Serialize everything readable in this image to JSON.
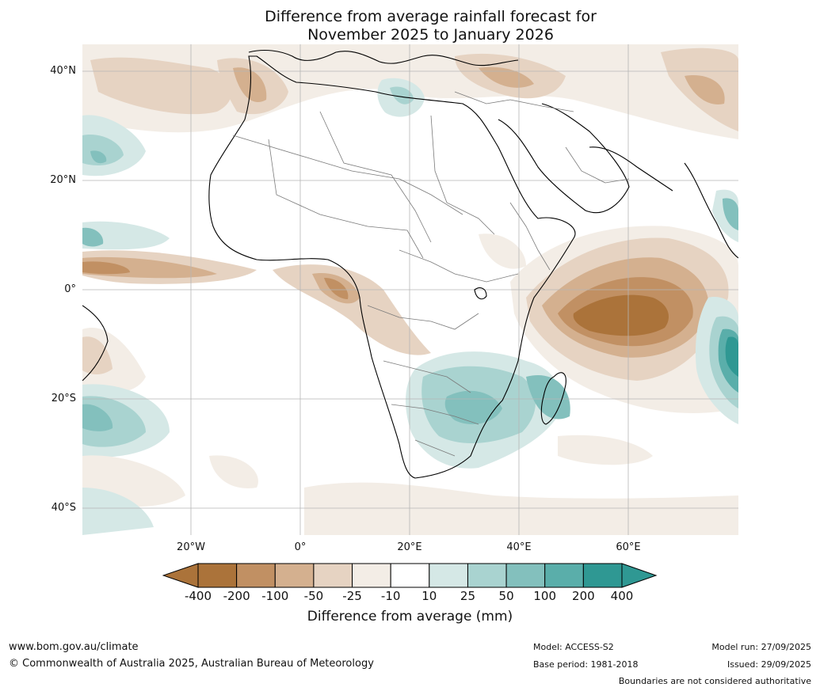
{
  "title": {
    "line1": "Difference from average rainfall forecast for",
    "line2": "November 2025 to January 2026"
  },
  "axes": {
    "lat_labels": [
      "40°N",
      "20°N",
      "0°",
      "20°S",
      "40°S"
    ],
    "lon_labels": [
      "20°W",
      "0°",
      "20°E",
      "40°E",
      "60°E"
    ]
  },
  "colorbar": {
    "labels": [
      "-400",
      "-200",
      "-100",
      "-50",
      "-25",
      "-10",
      "10",
      "25",
      "50",
      "100",
      "200",
      "400"
    ],
    "colors": [
      "#ab733a",
      "#c19063",
      "#d4b08f",
      "#e6d3c2",
      "#f3ede6",
      "#ffffff",
      "#d5e8e6",
      "#a9d3d0",
      "#83c0bd",
      "#5aaeaa",
      "#2f9893"
    ],
    "title": "Difference from average (mm)"
  },
  "footer": {
    "website": "www.bom.gov.au/climate",
    "copyright": "© Commonwealth of Australia 2025, Australian Bureau of Meteorology",
    "model": "Model: ACCESS-S2",
    "base_period": "Base period: 1981-2018",
    "model_run": "Model run: 27/09/2025",
    "issued": "Issued: 29/09/2025",
    "disclaimer": "Boundaries are not considered authoritative"
  }
}
